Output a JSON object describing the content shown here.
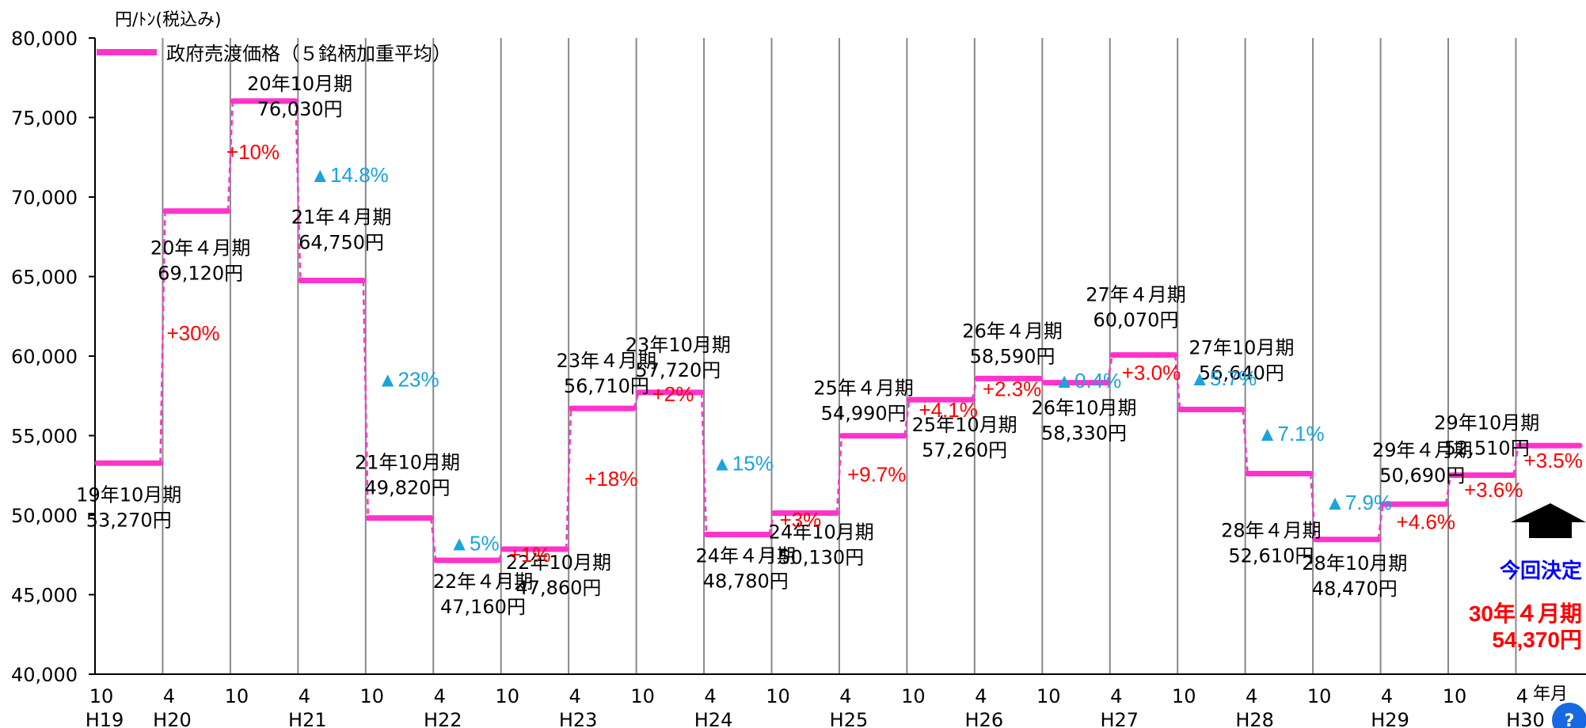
{
  "chart_data": {
    "type": "line",
    "ylabel": "円/ﾄﾝ(税込み)",
    "xlabel": "年月",
    "ylim": [
      40000,
      80000
    ],
    "yticks": [
      40000,
      45000,
      50000,
      55000,
      60000,
      65000,
      70000,
      75000,
      80000
    ],
    "ytick_labels": [
      "40,000",
      "45,000",
      "50,000",
      "55,000",
      "60,000",
      "65,000",
      "70,000",
      "75,000",
      "80,000"
    ],
    "grid": "vertical",
    "legend": {
      "position": "top-left",
      "label": "政府売渡価格（５銘柄加重平均）"
    },
    "series": [
      {
        "name": "政府売渡価格（５銘柄加重平均）",
        "color": "#ff33cc",
        "values": [
          53270,
          69120,
          76030,
          64750,
          49820,
          47160,
          47860,
          56710,
          57720,
          48780,
          50130,
          54990,
          57260,
          58590,
          58330,
          60070,
          56640,
          52610,
          48470,
          50690,
          52510,
          54370
        ]
      }
    ],
    "periods": [
      {
        "label": "19年10月期",
        "value_label": "53,270円",
        "change": ""
      },
      {
        "label": "20年４月期",
        "value_label": "69,120円",
        "change": "+30%"
      },
      {
        "label": "20年10月期",
        "value_label": "76,030円",
        "change": "+10%"
      },
      {
        "label": "21年４月期",
        "value_label": "64,750円",
        "change": "▲14.8%"
      },
      {
        "label": "21年10月期",
        "value_label": "49,820円",
        "change": "▲23%"
      },
      {
        "label": "22年４月期",
        "value_label": "47,160円",
        "change": "▲5%"
      },
      {
        "label": "22年10月期",
        "value_label": "47,860円",
        "change": "+1%"
      },
      {
        "label": "23年４月期",
        "value_label": "56,710円",
        "change": "+18%"
      },
      {
        "label": "23年10月期",
        "value_label": "57,720円",
        "change": "+2%"
      },
      {
        "label": "24年４月期",
        "value_label": "48,780円",
        "change": "▲15%"
      },
      {
        "label": "24年10月期",
        "value_label": "50,130円",
        "change": "+3%"
      },
      {
        "label": "25年４月期",
        "value_label": "54,990円",
        "change": "+9.7%"
      },
      {
        "label": "25年10月期",
        "value_label": "57,260円",
        "change": "+4.1%"
      },
      {
        "label": "26年４月期",
        "value_label": "58,590円",
        "change": "+2.3%"
      },
      {
        "label": "26年10月期",
        "value_label": "58,330円",
        "change": "▲0.4%"
      },
      {
        "label": "27年４月期",
        "value_label": "60,070円",
        "change": "+3.0%"
      },
      {
        "label": "27年10月期",
        "value_label": "56,640円",
        "change": "▲5.7%"
      },
      {
        "label": "28年４月期",
        "value_label": "52,610円",
        "change": "▲7.1%"
      },
      {
        "label": "28年10月期",
        "value_label": "48,470円",
        "change": "▲7.9%"
      },
      {
        "label": "29年４月期",
        "value_label": "50,690円",
        "change": "+4.6%"
      },
      {
        "label": "29年10月期",
        "value_label": "52,510円",
        "change": "+3.6%"
      },
      {
        "label": "30年４月期",
        "value_label": "54,370円",
        "change": "+3.5%"
      }
    ],
    "x_month_ticks": [
      "10",
      "4",
      "10",
      "4",
      "10",
      "4",
      "10",
      "4",
      "10",
      "4",
      "10",
      "4",
      "10",
      "4",
      "10",
      "4",
      "10",
      "4",
      "10",
      "4",
      "10",
      "4"
    ],
    "x_year_ticks": [
      "H19",
      "H20",
      "H21",
      "H22",
      "H23",
      "H24",
      "H25",
      "H26",
      "H27",
      "H28",
      "H29",
      "H30"
    ],
    "highlight": {
      "caption": "今回決定",
      "period": "30年４月期",
      "value": "54,370円",
      "caption_color": "#0000ff",
      "period_color": "#ff0000"
    }
  }
}
